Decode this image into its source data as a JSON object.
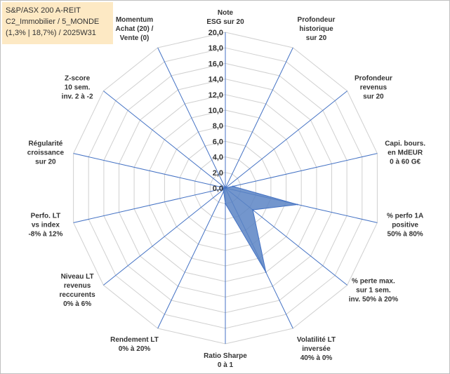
{
  "title_box": {
    "line1": "S&P/ASX 200 A-REIT",
    "line2": "C2_Immobilier / 5_MONDE",
    "line3": "(1,3% | 18,7%) / 2025W31"
  },
  "colors": {
    "fill": "#5b84c4",
    "fill_opacity": 0.85,
    "axis_line": "#4472c4",
    "grid": "#d0d0d0",
    "title_bg": "#fde9c4"
  },
  "chart_data": {
    "type": "radar",
    "rmax": 20,
    "tick_step": 2,
    "tick_labels": [
      "0,0",
      "2,0",
      "4,0",
      "6,0",
      "8,0",
      "10,0",
      "12,0",
      "14,0",
      "16,0",
      "18,0",
      "20,0"
    ],
    "axes": [
      {
        "label": [
          "Note",
          "ESG sur 20"
        ],
        "value": 0
      },
      {
        "label": [
          "Profondeur",
          "historique",
          "sur 20"
        ],
        "value": 0
      },
      {
        "label": [
          "Profondeur",
          "revenus",
          "sur 20"
        ],
        "value": 0
      },
      {
        "label": [
          "Capi. bours.",
          "en MdEUR",
          "0 à 60 G€"
        ],
        "value": 1
      },
      {
        "label": [
          "% perfo 1A",
          "positive",
          "50% à 80%"
        ],
        "value": 9.5
      },
      {
        "label": [
          "% perte max.",
          "sur 1 sem.",
          "inv. 50% à 20%"
        ],
        "value": 4.5
      },
      {
        "label": [
          "Volatilité LT",
          "inversée",
          "40% à 0%"
        ],
        "value": 12
      },
      {
        "label": [
          "Ratio Sharpe",
          "0 à 1"
        ],
        "value": 2
      },
      {
        "label": [
          "Rendement LT",
          "0% à 20%"
        ],
        "value": 0.5
      },
      {
        "label": [
          "Niveau LT",
          "revenus",
          "reccurents",
          "0% à 6%"
        ],
        "value": 0.3
      },
      {
        "label": [
          "Perfo. LT",
          "vs index",
          "-8% à 12%"
        ],
        "value": 0.3
      },
      {
        "label": [
          "Régularité",
          "croissance",
          "sur 20"
        ],
        "value": 0
      },
      {
        "label": [
          "Z-score",
          "10 sem.",
          "inv. 2 à -2"
        ],
        "value": 0
      },
      {
        "label": [
          "Momentum",
          "Achat (20) /",
          "Vente (0)"
        ],
        "value": 0
      }
    ]
  }
}
